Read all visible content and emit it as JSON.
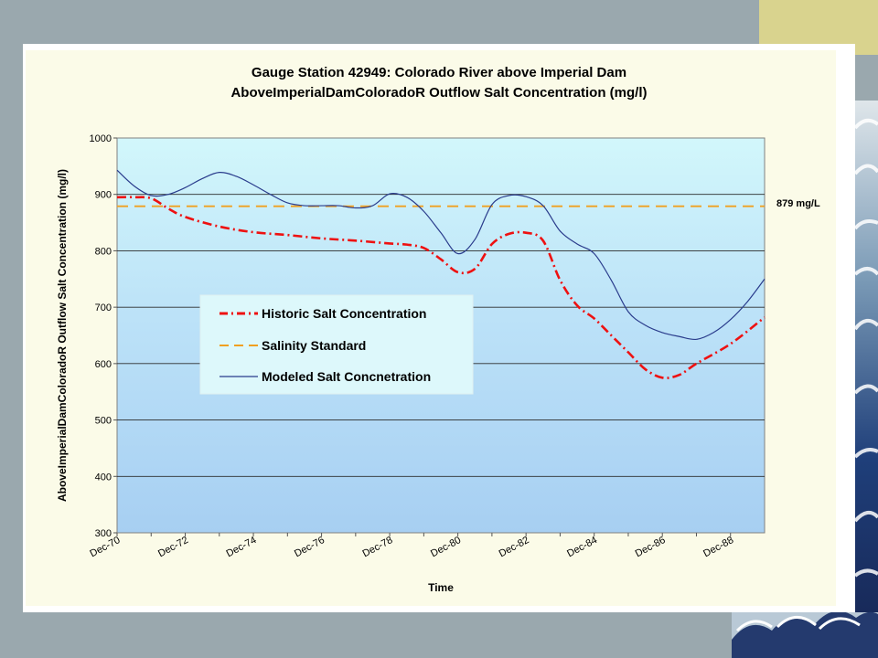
{
  "chart_data": {
    "type": "line",
    "title": "Gauge Station 42949: Colorado River above Imperial Dam",
    "subtitle": "AboveImperialDamColoradoR Outflow Salt Concentration (mg/l)",
    "xlabel": "Time",
    "ylabel": "AboveImperialDamColoradoR Outflow Salt Concentration (mg/l)",
    "ylim": [
      300,
      1000
    ],
    "xlim": [
      0,
      19
    ],
    "yticks": [
      300,
      400,
      500,
      600,
      700,
      800,
      900,
      1000
    ],
    "xticks": [
      {
        "x": 0,
        "label": "Dec-70"
      },
      {
        "x": 2,
        "label": "Dec-72"
      },
      {
        "x": 4,
        "label": "Dec-74"
      },
      {
        "x": 6,
        "label": "Dec-76"
      },
      {
        "x": 8,
        "label": "Dec-78"
      },
      {
        "x": 10,
        "label": "Dec-80"
      },
      {
        "x": 12,
        "label": "Dec-82"
      },
      {
        "x": 14,
        "label": "Dec-84"
      },
      {
        "x": 16,
        "label": "Dec-86"
      },
      {
        "x": 18,
        "label": "Dec-88"
      }
    ],
    "grid": "horizontal",
    "legend_position": "left-center",
    "series": [
      {
        "name": "Historic Salt Concentration",
        "style": "dash-dot",
        "color": "#ee1111",
        "x": [
          0,
          0.5,
          1,
          1.5,
          2,
          3,
          4,
          5,
          6,
          7,
          8,
          8.5,
          9,
          9.5,
          10,
          10.5,
          11,
          11.5,
          12,
          12.5,
          13,
          13.5,
          14,
          14.5,
          15,
          15.5,
          16,
          16.5,
          17,
          18,
          19
        ],
        "values": [
          895,
          895,
          893,
          875,
          860,
          843,
          833,
          828,
          822,
          818,
          813,
          811,
          805,
          785,
          762,
          768,
          812,
          830,
          832,
          818,
          748,
          703,
          680,
          650,
          620,
          590,
          575,
          580,
          600,
          635,
          682
        ]
      },
      {
        "name": "Salinity Standard",
        "style": "dashed",
        "color": "#f0a020",
        "x": [
          0,
          19
        ],
        "values": [
          879,
          879
        ]
      },
      {
        "name": "Modeled Salt Concnetration",
        "style": "solid",
        "color": "#2a3c8c",
        "x": [
          0,
          0.5,
          1,
          1.5,
          2,
          2.5,
          3,
          3.5,
          4,
          4.5,
          5,
          5.5,
          6,
          6.5,
          7,
          7.5,
          8,
          8.5,
          9,
          9.5,
          10,
          10.5,
          11,
          11.5,
          12,
          12.5,
          13,
          13.5,
          14,
          14.5,
          15,
          15.5,
          16,
          16.5,
          17,
          17.5,
          18,
          18.5,
          19
        ],
        "values": [
          943,
          915,
          898,
          900,
          912,
          928,
          939,
          932,
          917,
          900,
          885,
          880,
          880,
          880,
          876,
          880,
          901,
          895,
          870,
          832,
          795,
          820,
          882,
          898,
          896,
          880,
          835,
          812,
          795,
          748,
          692,
          668,
          655,
          648,
          643,
          655,
          678,
          710,
          750
        ]
      }
    ],
    "annotations": [
      {
        "text": "879 mg/L",
        "y": 879
      }
    ]
  }
}
